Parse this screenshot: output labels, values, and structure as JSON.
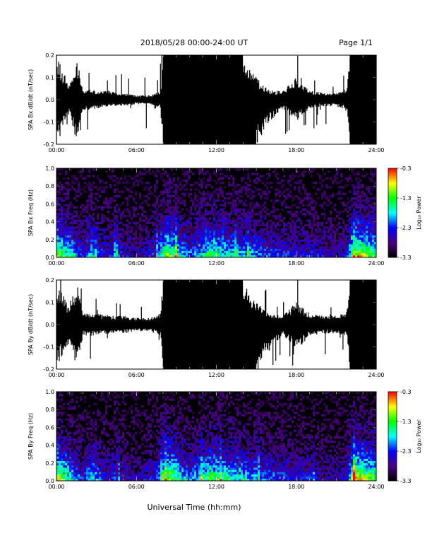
{
  "header": {
    "date_range": "2018/05/28  00:00-24:00 UT",
    "page": "Page 1/1"
  },
  "footer": {
    "xlabel": "Universal Time (hh:mm)"
  },
  "colorbar": {
    "label": "Log₁₀ Power",
    "ticks": [
      "-0.3",
      "-1.3",
      "-2.3",
      "-3.3"
    ],
    "tick_values": [
      -0.3,
      -1.3,
      -2.3,
      -3.3
    ],
    "range": [
      -3.3,
      -0.3
    ],
    "colors": [
      "#000000",
      "#4b0082",
      "#0000ff",
      "#00ffff",
      "#00ff00",
      "#ffff00",
      "#ff0000"
    ]
  },
  "chart_data": [
    {
      "type": "line",
      "ylabel": "SPA Bx dB/dt (nT/sec)",
      "x": [
        "00:00",
        "06:00",
        "12:00",
        "18:00",
        "24:00"
      ],
      "xlim": [
        "00:00",
        "24:00"
      ],
      "ylim": [
        -0.2,
        0.2
      ],
      "y_ticks": [
        "0.2",
        "0.1",
        "0.0",
        "-0.1",
        "-0.2"
      ],
      "envelope": {
        "t": [
          0,
          1,
          1.5,
          2,
          3,
          4,
          5,
          6,
          7,
          7.8,
          8,
          9,
          10,
          11,
          12,
          13,
          14,
          15,
          16,
          17,
          18,
          19,
          20,
          21,
          21.8,
          22,
          23,
          23.5,
          24
        ],
        "max": [
          0.2,
          0.06,
          0.2,
          0.05,
          0.04,
          0.04,
          0.03,
          0.02,
          0.02,
          0.04,
          0.2,
          0.2,
          0.2,
          0.2,
          0.2,
          0.2,
          0.2,
          0.1,
          0.04,
          0.04,
          0.1,
          0.04,
          0.03,
          0.03,
          0.05,
          0.2,
          0.2,
          0.2,
          0.2
        ],
        "min": [
          -0.2,
          -0.06,
          -0.2,
          -0.05,
          -0.04,
          -0.03,
          -0.03,
          -0.02,
          -0.02,
          -0.04,
          -0.2,
          -0.2,
          -0.2,
          -0.2,
          -0.2,
          -0.2,
          -0.2,
          -0.2,
          -0.1,
          -0.04,
          -0.1,
          -0.04,
          -0.03,
          -0.03,
          -0.05,
          -0.2,
          -0.2,
          -0.2,
          -0.2
        ]
      }
    },
    {
      "type": "heatmap",
      "ylabel": "SPA Bx Freq (Hz)",
      "x": [
        "00:00",
        "06:00",
        "12:00",
        "18:00",
        "24:00"
      ],
      "xlim": [
        "00:00",
        "24:00"
      ],
      "ylim": [
        0.0,
        1.0
      ],
      "y_ticks": [
        "1.0",
        "0.8",
        "0.6",
        "0.4",
        "0.2",
        "0.0"
      ],
      "zlim": [
        -3.3,
        -0.3
      ],
      "activity": {
        "t": [
          0,
          0.5,
          1,
          2,
          2.7,
          3.5,
          4.5,
          6,
          7.5,
          8.2,
          9,
          10,
          11,
          11.5,
          12.5,
          14,
          15,
          16,
          17,
          18,
          19,
          20,
          21,
          21.8,
          22.3,
          23,
          24
        ],
        "level": [
          0.85,
          0.7,
          0.6,
          0.3,
          0.6,
          0.3,
          0.35,
          0.2,
          0.35,
          0.85,
          0.65,
          0.4,
          0.55,
          0.7,
          0.6,
          0.5,
          0.45,
          0.35,
          0.35,
          0.3,
          0.3,
          0.25,
          0.2,
          0.3,
          0.95,
          0.85,
          0.7
        ]
      }
    },
    {
      "type": "line",
      "ylabel": "SPA By dB/dt (nT/sec)",
      "x": [
        "00:00",
        "06:00",
        "12:00",
        "18:00",
        "24:00"
      ],
      "xlim": [
        "00:00",
        "24:00"
      ],
      "ylim": [
        -0.2,
        0.2
      ],
      "y_ticks": [
        "0.2",
        "0.1",
        "0.0",
        "-0.1",
        "-0.2"
      ],
      "envelope": {
        "t": [
          0,
          1,
          1.5,
          2,
          3,
          4,
          5,
          6,
          7,
          7.8,
          8,
          9,
          10,
          11,
          12,
          13,
          14,
          15,
          16,
          17,
          18,
          19,
          20,
          21,
          21.8,
          22,
          23,
          23.5,
          24
        ],
        "max": [
          0.2,
          0.07,
          0.2,
          0.05,
          0.05,
          0.04,
          0.04,
          0.03,
          0.03,
          0.05,
          0.2,
          0.2,
          0.2,
          0.2,
          0.2,
          0.2,
          0.2,
          0.1,
          0.05,
          0.05,
          0.1,
          0.05,
          0.04,
          0.04,
          0.06,
          0.2,
          0.2,
          0.2,
          0.2
        ],
        "min": [
          -0.2,
          -0.07,
          -0.2,
          -0.05,
          -0.05,
          -0.04,
          -0.04,
          -0.03,
          -0.03,
          -0.05,
          -0.2,
          -0.2,
          -0.2,
          -0.2,
          -0.2,
          -0.2,
          -0.2,
          -0.2,
          -0.12,
          -0.05,
          -0.12,
          -0.05,
          -0.04,
          -0.04,
          -0.06,
          -0.2,
          -0.2,
          -0.2,
          -0.2
        ]
      }
    },
    {
      "type": "heatmap",
      "ylabel": "SPA By Freq (Hz)",
      "x": [
        "00:00",
        "06:00",
        "12:00",
        "18:00",
        "24:00"
      ],
      "xlim": [
        "00:00",
        "24:00"
      ],
      "ylim": [
        0.0,
        1.0
      ],
      "y_ticks": [
        "1.0",
        "0.8",
        "0.6",
        "0.4",
        "0.2",
        "0.0"
      ],
      "zlim": [
        -3.3,
        -0.3
      ],
      "activity": {
        "t": [
          0,
          0.5,
          1,
          2,
          2.7,
          3.5,
          4.5,
          6,
          7.5,
          8.2,
          9,
          10,
          11,
          11.5,
          12.5,
          14,
          15,
          16,
          17,
          18,
          19,
          20,
          21,
          21.8,
          22.3,
          23,
          24
        ],
        "level": [
          0.9,
          0.75,
          0.6,
          0.3,
          0.6,
          0.3,
          0.35,
          0.2,
          0.35,
          0.9,
          0.7,
          0.45,
          0.6,
          0.75,
          0.65,
          0.55,
          0.5,
          0.4,
          0.4,
          0.35,
          0.3,
          0.25,
          0.2,
          0.3,
          0.95,
          0.9,
          0.7
        ]
      }
    }
  ]
}
